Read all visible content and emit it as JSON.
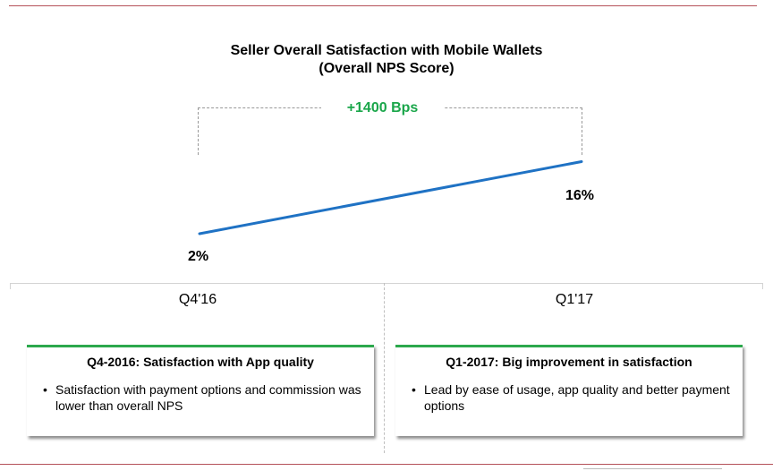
{
  "chart_data": {
    "type": "line",
    "title": "Seller Overall Satisfaction with Mobile Wallets",
    "subtitle": "(Overall NPS Score)",
    "categories": [
      "Q4'16",
      "Q1'17"
    ],
    "series": [
      {
        "values": [
          2,
          16
        ],
        "labels": [
          "2%",
          "16%"
        ],
        "color": "#1f72c4"
      }
    ],
    "annotation": {
      "text": "+1400 Bps",
      "color": "#1aa64a"
    },
    "grid": false,
    "legend": "none"
  },
  "cards": [
    {
      "title": "Q4-2016: Satisfaction with App quality",
      "bullets": [
        "Satisfaction with payment options and commission was lower than overall NPS"
      ]
    },
    {
      "title": "Q1-2017: Big improvement in satisfaction",
      "bullets": [
        "Lead by ease of usage, app quality and better payment options"
      ]
    }
  ],
  "colors": {
    "rule": "#b5525a",
    "accent_green": "#2ca84c",
    "line": "#1f72c4"
  }
}
